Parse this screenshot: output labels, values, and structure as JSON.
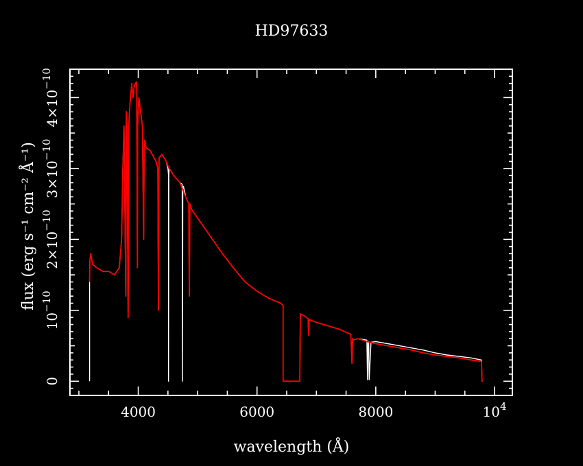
{
  "chart_data": {
    "type": "line",
    "title": "HD97633",
    "xlabel": "wavelength (Å)",
    "ylabel": "flux (erg s⁻¹ cm⁻² Å⁻¹)",
    "xlim": [
      2850,
      10300
    ],
    "ylim": [
      -2e-11,
      4.4e-10
    ],
    "x_ticks": [
      {
        "value": 4000,
        "label": "4000"
      },
      {
        "value": 6000,
        "label": "6000"
      },
      {
        "value": 8000,
        "label": "8000"
      },
      {
        "value": 10000,
        "label": "10",
        "exponent": "4"
      }
    ],
    "y_ticks": [
      {
        "value": 0,
        "label": "0",
        "exponent": ""
      },
      {
        "value": 1e-10,
        "label": "10",
        "exponent": "−10"
      },
      {
        "value": 2e-10,
        "label": "2×10",
        "exponent": "−10"
      },
      {
        "value": 3e-10,
        "label": "3×10",
        "exponent": "−10"
      },
      {
        "value": 4e-10,
        "label": "4×10",
        "exponent": "−10"
      }
    ],
    "series": [
      {
        "color": "#ffffff",
        "x": [
          3180,
          3180,
          3185,
          3200,
          3230,
          3300,
          3400,
          3500,
          3600,
          3680,
          3720,
          3740,
          3760,
          3790,
          3800,
          3810,
          3830,
          3840,
          3860,
          3880,
          3890,
          3910,
          3930,
          3950,
          3970,
          3975,
          3985,
          3990,
          4010,
          4040,
          4070,
          4090,
          4100,
          4110,
          4130,
          4200,
          4300,
          4330,
          4340,
          4350,
          4400,
          4470,
          4500,
          4510,
          4510,
          4515,
          4520,
          4540,
          4600,
          4700,
          4740,
          4745,
          4750,
          4760,
          4800,
          4850,
          4860,
          4870,
          4900,
          5000,
          5200,
          5400,
          5600,
          5800,
          6000,
          6200,
          6400,
          6440,
          6440,
          6450,
          6720,
          6730,
          6800,
          6860,
          6870,
          6880,
          7000,
          7200,
          7400,
          7580,
          7600,
          7610,
          7620,
          7700,
          7850,
          7860,
          7870,
          7880,
          7890,
          7920,
          8000,
          8200,
          8400,
          8600,
          8800,
          9000,
          9200,
          9400,
          9600,
          9780,
          9790,
          9800
        ],
        "y": [
          0,
          1.4e-10,
          1.7e-10,
          1.8e-10,
          1.65e-10,
          1.6e-10,
          1.55e-10,
          1.55e-10,
          1.5e-10,
          1.6e-10,
          2e-10,
          3e-10,
          3.6e-10,
          1.2e-10,
          3.8e-10,
          3.5e-10,
          9e-11,
          3.6e-10,
          3.9e-10,
          4.1e-10,
          4.2e-10,
          4e-10,
          4.15e-10,
          4.2e-10,
          4.22e-10,
          4.1e-10,
          1.6e-10,
          3.6e-10,
          4e-10,
          3.8e-10,
          3.6e-10,
          2e-10,
          3.3e-10,
          3.4e-10,
          3.3e-10,
          3.25e-10,
          3.1e-10,
          3e-10,
          1e-10,
          3.15e-10,
          3.2e-10,
          3.1e-10,
          3e-10,
          2.9e-10,
          0,
          2.9e-10,
          3e-10,
          2.98e-10,
          2.9e-10,
          2.8e-10,
          2.78e-10,
          0,
          2.7e-10,
          2.75e-10,
          2.6e-10,
          2.5e-10,
          1.2e-10,
          2.5e-10,
          2.42e-10,
          2.3e-10,
          2.06e-10,
          1.82e-10,
          1.6e-10,
          1.4e-10,
          1.27e-10,
          1.17e-10,
          1.1e-10,
          1.07e-10,
          0,
          0,
          0,
          9.5e-11,
          9.2e-11,
          8.8e-11,
          6.5e-11,
          8.7e-11,
          8.3e-11,
          7.8e-11,
          7.3e-11,
          6.6e-11,
          2.5e-11,
          6e-11,
          5.8e-11,
          6e-11,
          5.8e-11,
          2e-12,
          5.5e-11,
          5.6e-11,
          2e-12,
          5.5e-11,
          5.6e-11,
          5.3e-11,
          5e-11,
          4.7e-11,
          4.4e-11,
          4e-11,
          3.7e-11,
          3.5e-11,
          3.3e-11,
          3e-11,
          0,
          0
        ]
      },
      {
        "color": "#ff0000",
        "x": [
          3180,
          3185,
          3200,
          3230,
          3300,
          3400,
          3500,
          3600,
          3680,
          3720,
          3740,
          3760,
          3790,
          3800,
          3810,
          3830,
          3840,
          3860,
          3880,
          3890,
          3910,
          3930,
          3950,
          3970,
          3975,
          3985,
          3990,
          4010,
          4040,
          4070,
          4090,
          4100,
          4110,
          4130,
          4200,
          4300,
          4330,
          4340,
          4350,
          4400,
          4470,
          4520,
          4600,
          4700,
          4800,
          4850,
          4860,
          4870,
          4900,
          5000,
          5200,
          5400,
          5600,
          5800,
          6000,
          6200,
          6400,
          6440,
          6440,
          6450,
          6720,
          6730,
          6800,
          6860,
          6870,
          6880,
          7000,
          7200,
          7400,
          7580,
          7600,
          7610,
          7620,
          7700,
          7850,
          8000,
          8200,
          8400,
          8600,
          8800,
          9000,
          9200,
          9400,
          9600,
          9780,
          9790,
          9800
        ],
        "y": [
          1.4e-10,
          1.7e-10,
          1.8e-10,
          1.65e-10,
          1.6e-10,
          1.55e-10,
          1.55e-10,
          1.5e-10,
          1.6e-10,
          2e-10,
          3e-10,
          3.6e-10,
          1.2e-10,
          3.8e-10,
          3.5e-10,
          9e-11,
          3.6e-10,
          3.9e-10,
          4.1e-10,
          4.2e-10,
          4e-10,
          4.15e-10,
          4.2e-10,
          4.22e-10,
          4.1e-10,
          1.6e-10,
          3.6e-10,
          4e-10,
          3.8e-10,
          3.6e-10,
          2e-10,
          3.3e-10,
          3.4e-10,
          3.3e-10,
          3.25e-10,
          3.1e-10,
          3e-10,
          1e-10,
          3.15e-10,
          3.2e-10,
          3.1e-10,
          3e-10,
          2.9e-10,
          2.8e-10,
          2.6e-10,
          2.5e-10,
          1.2e-10,
          2.5e-10,
          2.42e-10,
          2.3e-10,
          2.06e-10,
          1.82e-10,
          1.6e-10,
          1.4e-10,
          1.27e-10,
          1.17e-10,
          1.1e-10,
          1.07e-10,
          0,
          0,
          0,
          9.5e-11,
          9.2e-11,
          8.8e-11,
          6.5e-11,
          8.7e-11,
          8.3e-11,
          7.8e-11,
          7.3e-11,
          6.6e-11,
          2.5e-11,
          6e-11,
          5.8e-11,
          6e-11,
          5.6e-11,
          5.3e-11,
          5e-11,
          4.7e-11,
          4.4e-11,
          4e-11,
          3.7e-11,
          3.5e-11,
          3.3e-11,
          3e-11,
          2.8e-11,
          0,
          0
        ]
      }
    ]
  }
}
